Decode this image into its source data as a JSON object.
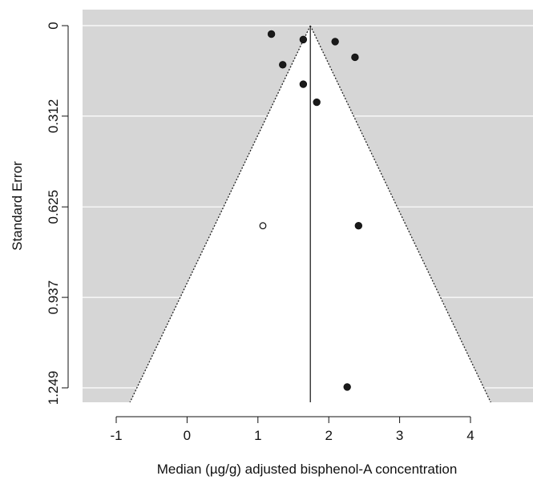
{
  "chart_data": {
    "type": "scatter",
    "subtype": "funnel-plot",
    "title": "",
    "xlabel": "Median (µg/g) adjusted bisphenol-A concentration",
    "ylabel": "Standard Error",
    "xlim": [
      -1.45,
      4.8
    ],
    "ylim": [
      1.249,
      0
    ],
    "y_reversed": true,
    "x_ticks": [
      -1,
      0,
      1,
      2,
      3,
      4
    ],
    "x_tick_labels": [
      "-1",
      "0",
      "1",
      "2",
      "3",
      "4"
    ],
    "y_ticks": [
      0,
      0.312,
      0.625,
      0.937,
      1.249
    ],
    "y_tick_labels": [
      "0",
      "0.312",
      "0.625",
      "0.937",
      "1.249"
    ],
    "grid": "horizontal, white lines on grey background",
    "legend": "none",
    "summary_estimate": 1.74,
    "funnel_multiplier": 1.96,
    "colors": {
      "panel_background": "#d6d6d6",
      "funnel_fill": "#ffffff",
      "point_fill": "#1a1a1a",
      "line": "#222222"
    },
    "series": [
      {
        "marker": "filled",
        "points": [
          {
            "x": 1.19,
            "y": 0.029
          },
          {
            "x": 1.64,
            "y": 0.048
          },
          {
            "x": 2.09,
            "y": 0.055
          },
          {
            "x": 2.37,
            "y": 0.109
          },
          {
            "x": 1.35,
            "y": 0.135
          },
          {
            "x": 1.64,
            "y": 0.202
          },
          {
            "x": 1.83,
            "y": 0.264
          },
          {
            "x": 2.42,
            "y": 0.69
          },
          {
            "x": 2.26,
            "y": 1.246
          }
        ]
      },
      {
        "marker": "open",
        "points": [
          {
            "x": 1.07,
            "y": 0.69
          }
        ]
      }
    ]
  }
}
